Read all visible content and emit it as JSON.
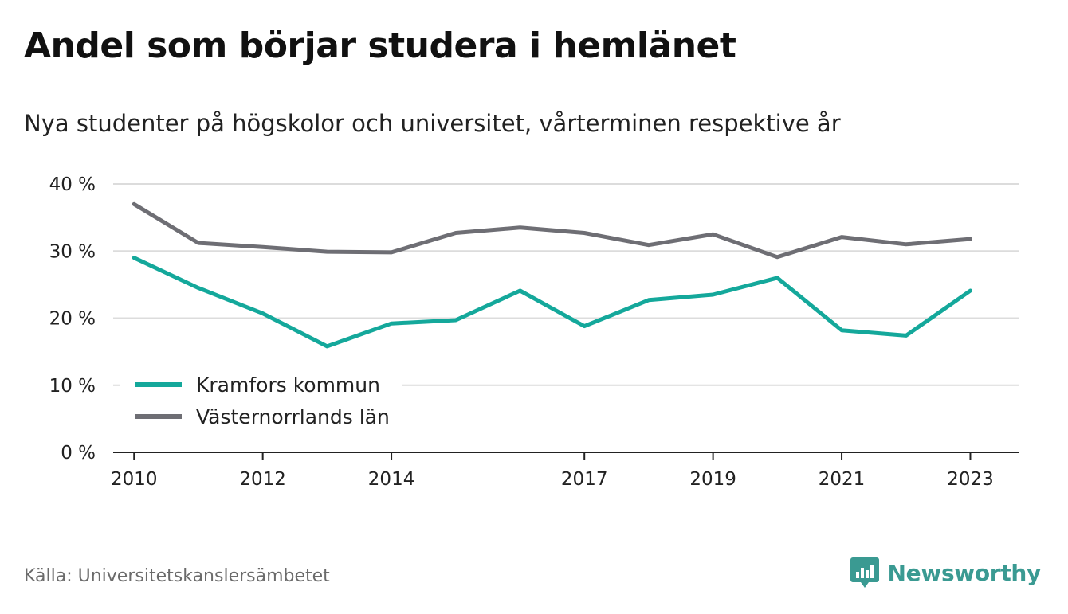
{
  "title": "Andel som börjar studera i hemlänet",
  "subtitle": "Nya studenter på högskolor och universitet, vårterminen respektive år",
  "source": "Källa: Universitetskanslersämbetet",
  "brand": {
    "name": "Newsworthy",
    "icon": "newsworthy-logo-icon",
    "color": "#3a9a92"
  },
  "chart_data": {
    "type": "line",
    "title": "Andel som börjar studera i hemlänet",
    "subtitle": "Nya studenter på högskolor och universitet, vårterminen respektive år",
    "x": [
      2010,
      2011,
      2012,
      2013,
      2014,
      2015,
      2016,
      2017,
      2018,
      2019,
      2020,
      2021,
      2022,
      2023
    ],
    "x_ticks": [
      2010,
      2012,
      2014,
      2017,
      2019,
      2021,
      2023
    ],
    "x_tick_labels": [
      "2010",
      "2012",
      "2014",
      "2017",
      "2019",
      "2021",
      "2023"
    ],
    "y_ticks": [
      0,
      10,
      20,
      30,
      40
    ],
    "y_tick_labels": [
      "0 %",
      "10 %",
      "20 %",
      "30 %",
      "40 %"
    ],
    "ylim": [
      0,
      40
    ],
    "grid": true,
    "legend_position": "bottom-left",
    "series": [
      {
        "name": "Kramfors kommun",
        "color": "#14a89b",
        "values": [
          29.0,
          24.5,
          20.7,
          15.8,
          19.2,
          19.7,
          24.1,
          18.8,
          22.7,
          23.5,
          26.0,
          18.2,
          17.4,
          24.1
        ]
      },
      {
        "name": "Västernorrlands län",
        "color": "#6e6e74",
        "values": [
          37.0,
          31.2,
          30.6,
          29.9,
          29.8,
          32.7,
          33.5,
          32.7,
          30.9,
          32.5,
          29.1,
          32.1,
          31.0,
          31.8
        ]
      }
    ]
  }
}
